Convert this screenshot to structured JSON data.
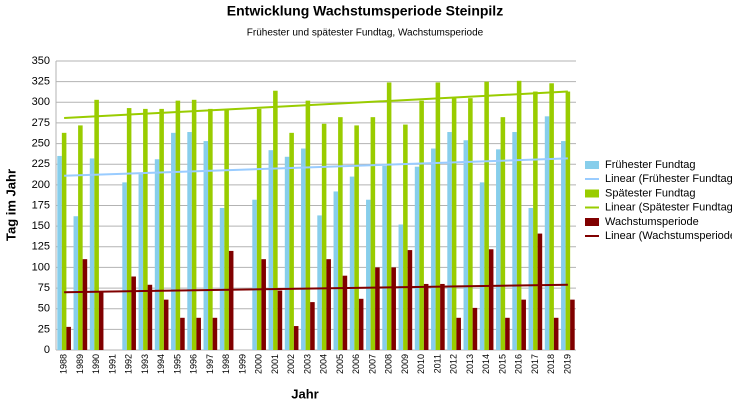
{
  "chart_data": {
    "type": "bar",
    "title": "Entwicklung Wachstumsperiode Steinpilz",
    "subtitle": "Frühester und spätester Fundtag, Wachstumsperiode",
    "x_label": "Jahr",
    "y_label": "Tag im Jahr",
    "categories": [
      "1988",
      "1989",
      "1990",
      "1991",
      "1992",
      "1993",
      "1994",
      "1995",
      "1996",
      "1997",
      "1998",
      "1999",
      "2000",
      "2001",
      "2002",
      "2003",
      "2004",
      "2005",
      "2006",
      "2007",
      "2008",
      "2009",
      "2010",
      "2011",
      "2012",
      "2013",
      "2014",
      "2015",
      "2016",
      "2017",
      "2018",
      "2019"
    ],
    "series": [
      {
        "name": "Frühester Fundtag",
        "color": "#87ceeb",
        "values": [
          235,
          162,
          232,
          null,
          203,
          213,
          231,
          263,
          264,
          253,
          172,
          null,
          182,
          242,
          234,
          244,
          163,
          192,
          210,
          182,
          223,
          152,
          222,
          244,
          264,
          254,
          203,
          243,
          264,
          172,
          283,
          253
        ],
        "trend": {
          "name": "Linear (Frühester Fundtag)",
          "color": "#99ccff",
          "values": [
            211,
            232
          ]
        }
      },
      {
        "name": "Spätester Fundtag",
        "color": "#99cc00",
        "values": [
          263,
          272,
          303,
          null,
          293,
          292,
          292,
          302,
          303,
          292,
          291,
          null,
          292,
          314,
          263,
          302,
          274,
          282,
          272,
          282,
          324,
          273,
          302,
          324,
          305,
          305,
          325,
          282,
          326,
          313,
          323,
          313
        ],
        "trend": {
          "name": "Linear (Spätester Fundtag)",
          "color": "#99cc00",
          "values": [
            281,
            313
          ]
        }
      },
      {
        "name": "Wachstumsperiode",
        "color": "#800000",
        "values": [
          28,
          110,
          70,
          null,
          89,
          79,
          61,
          39,
          39,
          39,
          120,
          null,
          110,
          72,
          29,
          58,
          110,
          90,
          62,
          100,
          100,
          121,
          80,
          80,
          39,
          51,
          122,
          39,
          61,
          141,
          39,
          61
        ],
        "trend": {
          "name": "Linear (Wachstumsperiode)",
          "color": "#800000",
          "values": [
            70,
            79
          ]
        }
      }
    ],
    "ylim": [
      0,
      350
    ],
    "yticks": [
      0,
      25,
      50,
      75,
      100,
      125,
      150,
      175,
      200,
      225,
      250,
      275,
      300,
      325,
      350
    ],
    "grid": true
  }
}
